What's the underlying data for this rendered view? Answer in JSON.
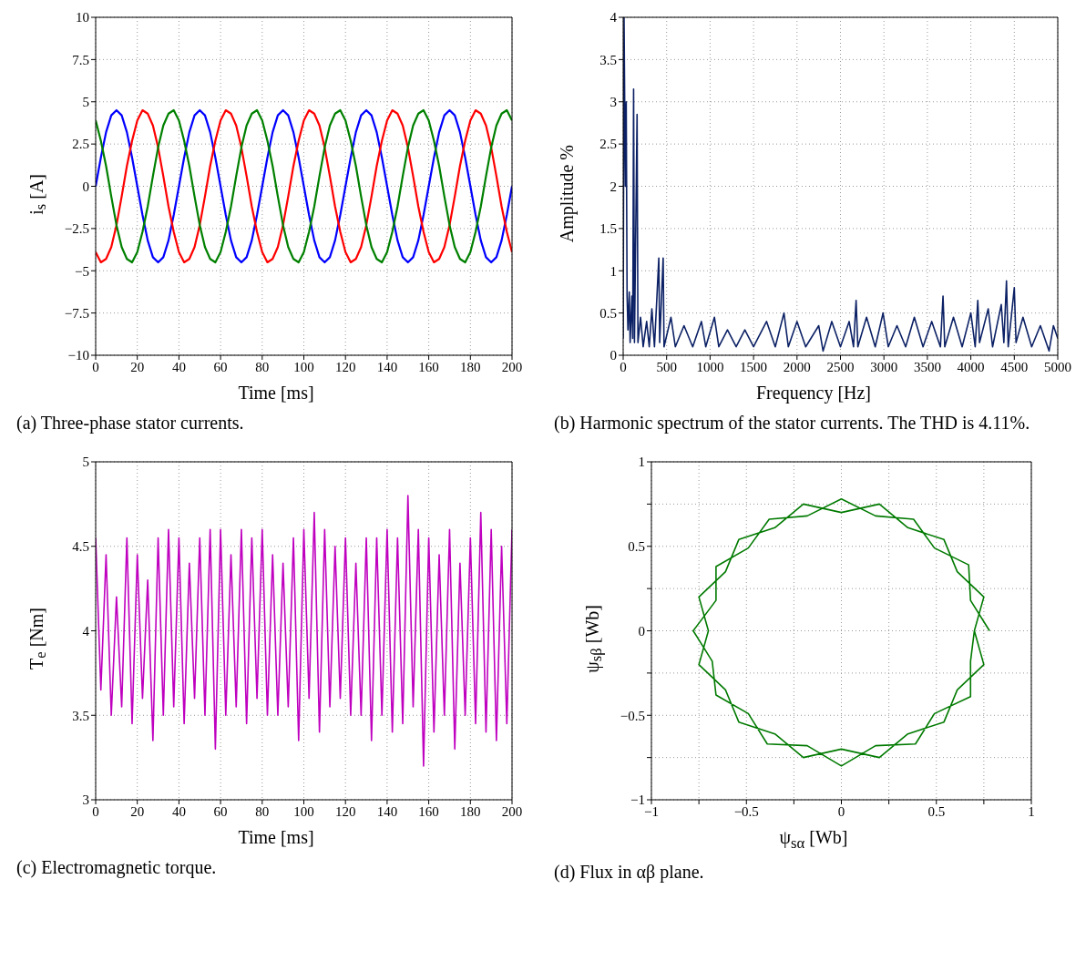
{
  "chart_data": [
    {
      "type": "line",
      "xlabel": "Time [ms]",
      "ylabel": "i$_{s}$ [A]",
      "annotations": [
        "(a) Three-phase stator currents."
      ],
      "xlim": [
        0,
        200
      ],
      "xticks": [
        0,
        20,
        40,
        60,
        80,
        100,
        120,
        140,
        160,
        180,
        200
      ],
      "ylim": [
        -10,
        10
      ],
      "yticks": [
        -10,
        -7.5,
        -5,
        -2.5,
        0,
        2.5,
        5,
        7.5,
        10
      ],
      "grid": true,
      "x": [
        0,
        2.5,
        5,
        7.5,
        10,
        12.5,
        15,
        17.5,
        20,
        22.5,
        25,
        27.5,
        30,
        32.5,
        35,
        37.5,
        40,
        42.5,
        45,
        47.5,
        50,
        52.5,
        55,
        57.5,
        60,
        62.5,
        65,
        67.5,
        70,
        72.5,
        75,
        77.5,
        80,
        82.5,
        85,
        87.5,
        90,
        92.5,
        95,
        97.5,
        100,
        102.5,
        105,
        107.5,
        110,
        112.5,
        115,
        117.5,
        120,
        122.5,
        125,
        127.5,
        130,
        132.5,
        135,
        137.5,
        140,
        142.5,
        145,
        147.5,
        150,
        152.5,
        155,
        157.5,
        160,
        162.5,
        165,
        167.5,
        170,
        172.5,
        175,
        177.5,
        180,
        182.5,
        185,
        187.5,
        190,
        192.5,
        195,
        197.5,
        200
      ],
      "series": [
        {
          "color": "#0000ff",
          "values": [
            0,
            1.7,
            3.2,
            4.2,
            4.5,
            4.2,
            3.2,
            1.7,
            0,
            -1.7,
            -3.2,
            -4.2,
            -4.5,
            -4.2,
            -3.2,
            -1.7,
            0,
            1.7,
            3.2,
            4.2,
            4.5,
            4.2,
            3.2,
            1.7,
            0,
            -1.7,
            -3.2,
            -4.2,
            -4.5,
            -4.2,
            -3.2,
            -1.7,
            0,
            1.7,
            3.2,
            4.2,
            4.5,
            4.2,
            3.2,
            1.7,
            0,
            -1.7,
            -3.2,
            -4.2,
            -4.5,
            -4.2,
            -3.2,
            -1.7,
            0,
            1.7,
            3.2,
            4.2,
            4.5,
            4.2,
            3.2,
            1.7,
            0,
            -1.7,
            -3.2,
            -4.2,
            -4.5,
            -4.2,
            -3.2,
            -1.7,
            0,
            1.7,
            3.2,
            4.2,
            4.5,
            4.2,
            3.2,
            1.7,
            0,
            -1.7,
            -3.2,
            -4.2,
            -4.5,
            -4.2,
            -3.2,
            -1.7,
            0
          ]
        },
        {
          "color": "#ff0000",
          "values": [
            -3.9,
            -4.5,
            -4.3,
            -3.6,
            -2.3,
            -0.6,
            1.2,
            2.7,
            3.9,
            4.5,
            4.3,
            3.6,
            2.3,
            0.6,
            -1.2,
            -2.7,
            -3.9,
            -4.5,
            -4.3,
            -3.6,
            -2.3,
            -0.6,
            1.2,
            2.7,
            3.9,
            4.5,
            4.3,
            3.6,
            2.3,
            0.6,
            -1.2,
            -2.7,
            -3.9,
            -4.5,
            -4.3,
            -3.6,
            -2.3,
            -0.6,
            1.2,
            2.7,
            3.9,
            4.5,
            4.3,
            3.6,
            2.3,
            0.6,
            -1.2,
            -2.7,
            -3.9,
            -4.5,
            -4.3,
            -3.6,
            -2.3,
            -0.6,
            1.2,
            2.7,
            3.9,
            4.5,
            4.3,
            3.6,
            2.3,
            0.6,
            -1.2,
            -2.7,
            -3.9,
            -4.5,
            -4.3,
            -3.6,
            -2.3,
            -0.6,
            1.2,
            2.7,
            3.9,
            4.5,
            4.3,
            3.6,
            2.3,
            0.6,
            -1.2,
            -2.7,
            -3.9
          ]
        },
        {
          "color": "#008000",
          "values": [
            3.9,
            2.7,
            1.2,
            -0.6,
            -2.3,
            -3.6,
            -4.3,
            -4.5,
            -3.9,
            -2.7,
            -1.2,
            0.6,
            2.3,
            3.6,
            4.3,
            4.5,
            3.9,
            2.7,
            1.2,
            -0.6,
            -2.3,
            -3.6,
            -4.3,
            -4.5,
            -3.9,
            -2.7,
            -1.2,
            0.6,
            2.3,
            3.6,
            4.3,
            4.5,
            3.9,
            2.7,
            1.2,
            -0.6,
            -2.3,
            -3.6,
            -4.3,
            -4.5,
            -3.9,
            -2.7,
            -1.2,
            0.6,
            2.3,
            3.6,
            4.3,
            4.5,
            3.9,
            2.7,
            1.2,
            -0.6,
            -2.3,
            -3.6,
            -4.3,
            -4.5,
            -3.9,
            -2.7,
            -1.2,
            0.6,
            2.3,
            3.6,
            4.3,
            4.5,
            3.9,
            2.7,
            1.2,
            -0.6,
            -2.3,
            -3.6,
            -4.3,
            -4.5,
            -3.9,
            -2.7,
            -1.2,
            0.6,
            2.3,
            3.6,
            4.3,
            4.5,
            3.9
          ]
        }
      ]
    },
    {
      "type": "line",
      "xlabel": "Frequency [Hz]",
      "ylabel": "Amplitude %",
      "annotations": [
        "(b) Harmonic spectrum of the stator currents. The THD is 4.11%."
      ],
      "xlim": [
        0,
        5000
      ],
      "xticks": [
        0,
        500,
        1000,
        1500,
        2000,
        2500,
        3000,
        3500,
        4000,
        4500,
        5000
      ],
      "ylim": [
        0,
        4
      ],
      "yticks": [
        0,
        0.5,
        1,
        1.5,
        2,
        2.5,
        3,
        3.5,
        4
      ],
      "grid": true,
      "color": "#0c2165",
      "x": [
        0,
        10,
        25,
        35,
        45,
        55,
        70,
        80,
        100,
        110,
        120,
        130,
        160,
        170,
        200,
        230,
        270,
        300,
        330,
        360,
        410,
        420,
        460,
        470,
        550,
        600,
        700,
        800,
        900,
        950,
        1050,
        1100,
        1200,
        1300,
        1400,
        1500,
        1650,
        1750,
        1850,
        1900,
        2000,
        2100,
        2250,
        2300,
        2400,
        2500,
        2600,
        2650,
        2680,
        2700,
        2800,
        2900,
        2990,
        3050,
        3150,
        3250,
        3350,
        3450,
        3550,
        3650,
        3680,
        3700,
        3800,
        3900,
        4000,
        4050,
        4080,
        4100,
        4200,
        4250,
        4350,
        4380,
        4410,
        4430,
        4500,
        4520,
        4600,
        4700,
        4800,
        4900,
        4950,
        5000
      ],
      "values": [
        0.2,
        4,
        2,
        3,
        0.7,
        0.3,
        0.75,
        0.15,
        0.7,
        0.2,
        3.15,
        0.15,
        2.85,
        0.15,
        0.45,
        0.1,
        0.4,
        0.1,
        0.55,
        0.1,
        1.15,
        0.15,
        1.15,
        0.1,
        0.45,
        0.1,
        0.35,
        0.1,
        0.4,
        0.1,
        0.45,
        0.1,
        0.3,
        0.1,
        0.3,
        0.1,
        0.4,
        0.1,
        0.5,
        0.1,
        0.4,
        0.1,
        0.35,
        0.05,
        0.4,
        0.1,
        0.4,
        0.1,
        0.65,
        0.1,
        0.45,
        0.1,
        0.5,
        0.1,
        0.35,
        0.1,
        0.45,
        0.1,
        0.4,
        0.1,
        0.7,
        0.1,
        0.45,
        0.1,
        0.5,
        0.1,
        0.65,
        0.15,
        0.55,
        0.1,
        0.6,
        0.15,
        0.88,
        0.1,
        0.8,
        0.15,
        0.45,
        0.1,
        0.35,
        0.05,
        0.35,
        0.2
      ]
    },
    {
      "type": "line",
      "xlabel": "Time [ms]",
      "ylabel": "T$_{e}$ [Nm]",
      "annotations": [
        "(c) Electromagnetic torque."
      ],
      "xlim": [
        0,
        200
      ],
      "xticks": [
        0,
        20,
        40,
        60,
        80,
        100,
        120,
        140,
        160,
        180,
        200
      ],
      "ylim": [
        3,
        5
      ],
      "yticks": [
        3,
        3.5,
        4,
        4.5,
        5
      ],
      "grid": true,
      "color": "#bf00bf",
      "x": [
        0,
        2.5,
        5,
        7.5,
        10,
        12.5,
        15,
        17.5,
        20,
        22.5,
        25,
        27.5,
        30,
        32.5,
        35,
        37.5,
        40,
        42.5,
        45,
        47.5,
        50,
        52.5,
        55,
        57.5,
        60,
        62.5,
        65,
        67.5,
        70,
        72.5,
        75,
        77.5,
        80,
        82.5,
        85,
        87.5,
        90,
        92.5,
        95,
        97.5,
        100,
        102.5,
        105,
        107.5,
        110,
        112.5,
        115,
        117.5,
        120,
        122.5,
        125,
        127.5,
        130,
        132.5,
        135,
        137.5,
        140,
        142.5,
        145,
        147.5,
        150,
        152.5,
        155,
        157.5,
        160,
        162.5,
        165,
        167.5,
        170,
        172.5,
        175,
        177.5,
        180,
        182.5,
        185,
        187.5,
        190,
        192.5,
        195,
        197.5,
        200
      ],
      "values": [
        4.55,
        3.65,
        4.45,
        3.5,
        4.2,
        3.55,
        4.55,
        3.45,
        4.45,
        3.6,
        4.3,
        3.35,
        4.55,
        3.5,
        4.6,
        3.55,
        4.55,
        3.45,
        4.4,
        3.6,
        4.55,
        3.5,
        4.6,
        3.3,
        4.6,
        3.5,
        4.45,
        3.55,
        4.6,
        3.45,
        4.55,
        3.6,
        4.6,
        3.5,
        4.45,
        3.5,
        4.4,
        3.55,
        4.55,
        3.35,
        4.6,
        3.6,
        4.7,
        3.4,
        4.6,
        3.55,
        4.5,
        3.6,
        4.55,
        3.5,
        4.4,
        3.5,
        4.55,
        3.35,
        4.55,
        3.5,
        4.6,
        3.4,
        4.55,
        3.45,
        4.8,
        3.55,
        4.6,
        3.2,
        4.55,
        3.4,
        4.45,
        3.5,
        4.6,
        3.3,
        4.4,
        3.5,
        4.55,
        3.45,
        4.7,
        3.4,
        4.6,
        3.35,
        4.5,
        3.45,
        4.6
      ]
    },
    {
      "type": "line",
      "xlabel": "ψ$_{sα}$ [Wb]",
      "ylabel": "ψ$_{sβ}$ [Wb]",
      "annotations": [
        "(d) Flux in αβ plane."
      ],
      "xlim": [
        -1,
        1
      ],
      "xticks": [
        -1,
        {
          "value": -0.75,
          "label": null
        },
        -0.5,
        {
          "value": -0.25,
          "label": null
        },
        0,
        {
          "value": 0.25,
          "label": null
        },
        0.5,
        {
          "value": 0.75,
          "label": null
        },
        1
      ],
      "ylim": [
        -1,
        1
      ],
      "yticks": [
        -1,
        {
          "value": -0.75,
          "label": null
        },
        -0.5,
        {
          "value": -0.25,
          "label": null
        },
        0,
        {
          "value": 0.25,
          "label": null
        },
        0.5,
        {
          "value": 0.75,
          "label": null
        },
        1
      ],
      "grid": true,
      "color": "#007a00",
      "x": [
        0.78,
        0.68,
        0.67,
        0.49,
        0.38,
        0.18,
        0,
        -0.18,
        -0.38,
        -0.49,
        -0.66,
        -0.66,
        -0.78,
        -0.68,
        -0.66,
        -0.49,
        -0.39,
        -0.18,
        0,
        0.18,
        0.39,
        0.49,
        0.68,
        0.68,
        0.7,
        0.75,
        0.61,
        0.54,
        0.35,
        0.2,
        0,
        -0.2,
        -0.35,
        -0.54,
        -0.61,
        -0.75,
        -0.7,
        -0.75,
        -0.61,
        -0.54,
        -0.35,
        -0.2,
        0,
        0.2,
        0.35,
        0.54,
        0.61,
        0.75,
        0.7
      ],
      "values": [
        0,
        0.18,
        0.39,
        0.49,
        0.66,
        0.68,
        0.78,
        0.68,
        0.66,
        0.49,
        0.38,
        0.18,
        0,
        -0.18,
        -0.38,
        -0.49,
        -0.67,
        -0.68,
        -0.8,
        -0.68,
        -0.67,
        -0.49,
        -0.39,
        -0.18,
        0,
        0.2,
        0.35,
        0.54,
        0.61,
        0.75,
        0.7,
        0.75,
        0.61,
        0.54,
        0.35,
        0.2,
        0,
        -0.2,
        -0.35,
        -0.54,
        -0.61,
        -0.75,
        -0.7,
        -0.75,
        -0.61,
        -0.54,
        -0.35,
        -0.2,
        0
      ]
    }
  ]
}
